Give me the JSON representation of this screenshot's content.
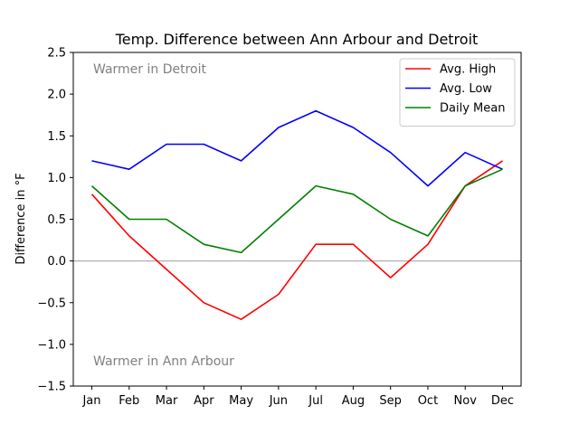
{
  "chart_data": {
    "type": "line",
    "title": "Temp. Difference between Ann Arbour and Detroit",
    "xlabel": "",
    "ylabel": "Difference in °F",
    "categories": [
      "Jan",
      "Feb",
      "Mar",
      "Apr",
      "May",
      "Jun",
      "Jul",
      "Aug",
      "Sep",
      "Oct",
      "Nov",
      "Dec"
    ],
    "ylim": [
      -1.5,
      2.5
    ],
    "yticks": [
      -1.5,
      -1.0,
      -0.5,
      0.0,
      0.5,
      1.0,
      1.5,
      2.0,
      2.5
    ],
    "ytick_labels": [
      "−1.5",
      "−1.0",
      "−0.5",
      "0.0",
      "0.5",
      "1.0",
      "1.5",
      "2.0",
      "2.5"
    ],
    "reference_line": {
      "y": 0,
      "color": "#b0b0b0"
    },
    "grid": false,
    "legend": "top-right",
    "series": [
      {
        "name": "Avg. High",
        "color": "#ff0000",
        "values": [
          0.8,
          0.3,
          -0.1,
          -0.5,
          -0.7,
          -0.4,
          0.2,
          0.2,
          -0.2,
          0.2,
          0.9,
          1.2
        ]
      },
      {
        "name": "Avg. Low",
        "color": "#0000ff",
        "values": [
          1.2,
          1.1,
          1.4,
          1.4,
          1.2,
          1.6,
          1.8,
          1.6,
          1.3,
          0.9,
          1.3,
          1.1
        ]
      },
      {
        "name": "Daily Mean",
        "color": "#008000",
        "values": [
          0.9,
          0.5,
          0.5,
          0.2,
          0.1,
          0.5,
          0.9,
          0.8,
          0.5,
          0.3,
          0.9,
          1.1
        ]
      }
    ],
    "annotations": [
      {
        "text": "Warmer in Detroit",
        "position": "top-left"
      },
      {
        "text": "Warmer in Ann Arbour",
        "position": "bottom-left"
      }
    ]
  }
}
